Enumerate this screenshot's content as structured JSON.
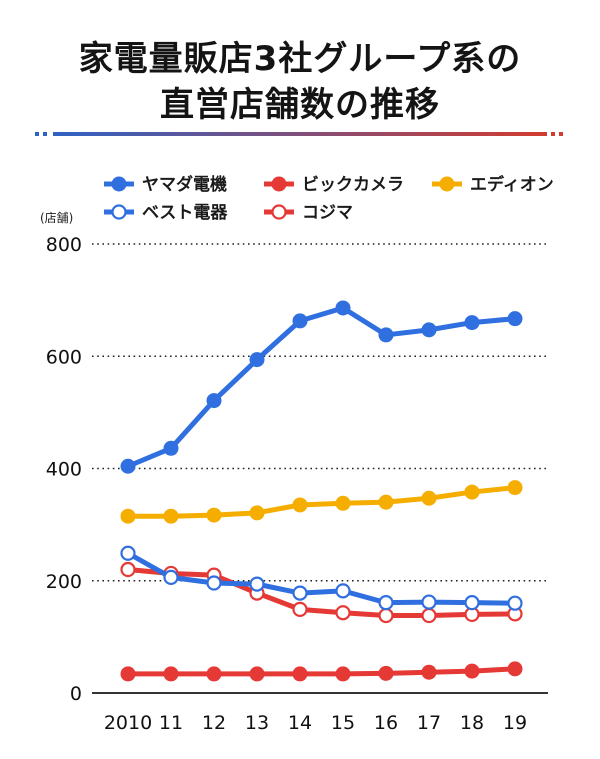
{
  "title": {
    "line1": "家電量販店3社グループ系の",
    "line2": "直営店舗数の推移"
  },
  "colors": {
    "divider_start": "#2e62c4",
    "divider_end": "#d23b2f",
    "grid": "#222222",
    "axis": "#333333"
  },
  "chart_data": {
    "type": "line",
    "title": "家電量販店3社グループ系の直営店舗数の推移",
    "xlabel": "",
    "ylabel": "(店舗)",
    "categories": [
      "2010",
      "11",
      "12",
      "13",
      "14",
      "15",
      "16",
      "17",
      "18",
      "19"
    ],
    "ylim": [
      0,
      800
    ],
    "yticks": [
      "0",
      "200",
      "400",
      "600",
      "800"
    ],
    "grid": "horizontal dotted",
    "legend_position": "top",
    "series": [
      {
        "name": "ヤマダ電機",
        "color": "#2f6fdf",
        "marker": "filled",
        "values": [
          404,
          436,
          521,
          594,
          663,
          686,
          638,
          647,
          660,
          667
        ]
      },
      {
        "name": "ビックカメラ",
        "color": "#e53935",
        "marker": "filled",
        "values": [
          34,
          34,
          34,
          34,
          34,
          34,
          35,
          37,
          39,
          43
        ]
      },
      {
        "name": "エディオン",
        "color": "#f5ae00",
        "marker": "filled",
        "values": [
          315,
          315,
          317,
          321,
          335,
          338,
          340,
          347,
          358,
          366
        ]
      },
      {
        "name": "ベスト電器",
        "color": "#2f6fdf",
        "marker": "hollow",
        "values": [
          249,
          206,
          196,
          194,
          178,
          182,
          161,
          162,
          161,
          160
        ]
      },
      {
        "name": "コジマ",
        "color": "#e53935",
        "marker": "hollow",
        "values": [
          220,
          213,
          210,
          178,
          149,
          143,
          138,
          138,
          140,
          141
        ]
      }
    ]
  }
}
